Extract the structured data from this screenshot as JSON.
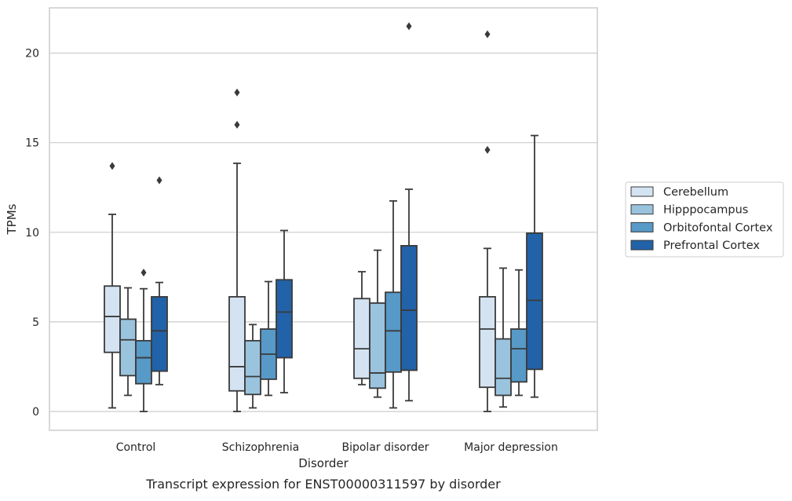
{
  "chart_data": {
    "type": "box",
    "caption": "Transcript expression for ENST00000311597 by disorder",
    "xlabel": "Disorder",
    "ylabel": "TPMs",
    "ylim": [
      -1,
      22.5
    ],
    "yticks": [
      0,
      5,
      10,
      15,
      20
    ],
    "grid": true,
    "legend_position": "right",
    "categories": [
      "Control",
      "Schizophrenia",
      "Bipolar disorder",
      "Major depression"
    ],
    "series": [
      {
        "name": "Cerebellum",
        "color": "#d4e3f2",
        "boxes": [
          {
            "whisker_low": 0.2,
            "q1": 3.3,
            "median": 5.3,
            "q3": 7.0,
            "whisker_high": 11.0,
            "outliers": [
              13.7
            ]
          },
          {
            "whisker_low": 0.0,
            "q1": 1.15,
            "median": 2.5,
            "q3": 6.4,
            "whisker_high": 13.85,
            "outliers": [
              16.0,
              17.8
            ]
          },
          {
            "whisker_low": 1.5,
            "q1": 1.85,
            "median": 3.5,
            "q3": 6.3,
            "whisker_high": 7.8,
            "outliers": []
          },
          {
            "whisker_low": 0.0,
            "q1": 1.35,
            "median": 4.6,
            "q3": 6.4,
            "whisker_high": 9.1,
            "outliers": [
              14.6,
              21.05
            ]
          }
        ]
      },
      {
        "name": "Hipppocampus",
        "color": "#9ac3de",
        "boxes": [
          {
            "whisker_low": 0.9,
            "q1": 2.0,
            "median": 4.0,
            "q3": 5.15,
            "whisker_high": 6.9,
            "outliers": []
          },
          {
            "whisker_low": 0.2,
            "q1": 0.95,
            "median": 1.95,
            "q3": 3.95,
            "whisker_high": 4.85,
            "outliers": []
          },
          {
            "whisker_low": 0.8,
            "q1": 1.3,
            "median": 2.15,
            "q3": 6.05,
            "whisker_high": 9.0,
            "outliers": []
          },
          {
            "whisker_low": 0.25,
            "q1": 0.9,
            "median": 1.85,
            "q3": 4.05,
            "whisker_high": 8.0,
            "outliers": []
          }
        ]
      },
      {
        "name": "Orbitofontal Cortex",
        "color": "#5799c7",
        "boxes": [
          {
            "whisker_low": 0.0,
            "q1": 1.55,
            "median": 3.0,
            "q3": 3.95,
            "whisker_high": 6.85,
            "outliers": [
              7.75
            ]
          },
          {
            "whisker_low": 0.9,
            "q1": 1.8,
            "median": 3.2,
            "q3": 4.6,
            "whisker_high": 7.25,
            "outliers": []
          },
          {
            "whisker_low": 0.2,
            "q1": 2.2,
            "median": 4.5,
            "q3": 6.65,
            "whisker_high": 11.75,
            "outliers": []
          },
          {
            "whisker_low": 0.9,
            "q1": 1.65,
            "median": 3.5,
            "q3": 4.6,
            "whisker_high": 7.9,
            "outliers": []
          }
        ]
      },
      {
        "name": "Prefrontal Cortex",
        "color": "#2262a8",
        "boxes": [
          {
            "whisker_low": 1.5,
            "q1": 2.25,
            "median": 4.5,
            "q3": 6.4,
            "whisker_high": 7.2,
            "outliers": [
              12.9
            ]
          },
          {
            "whisker_low": 1.05,
            "q1": 3.0,
            "median": 5.55,
            "q3": 7.35,
            "whisker_high": 10.1,
            "outliers": []
          },
          {
            "whisker_low": 0.6,
            "q1": 2.3,
            "median": 5.65,
            "q3": 9.25,
            "whisker_high": 12.4,
            "outliers": [
              21.5
            ]
          },
          {
            "whisker_low": 0.8,
            "q1": 2.35,
            "median": 6.2,
            "q3": 9.95,
            "whisker_high": 15.4,
            "outliers": []
          }
        ]
      }
    ]
  }
}
